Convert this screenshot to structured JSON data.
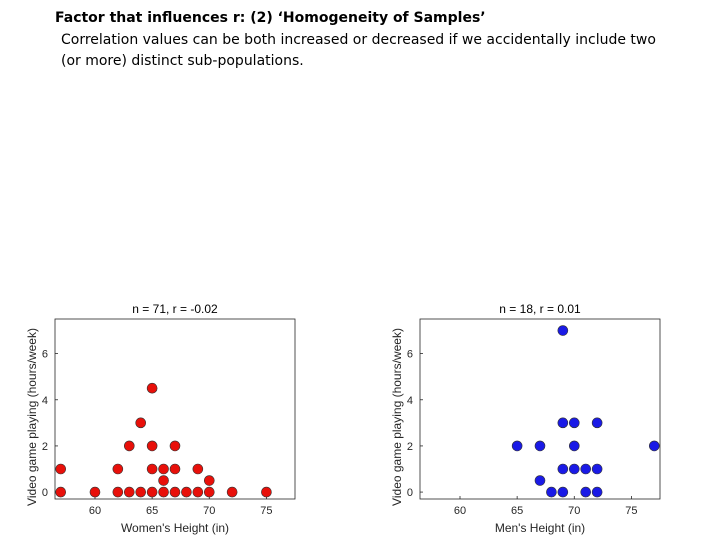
{
  "slide": {
    "title": "Factor that influences r: (2) ‘Homogeneity of Samples’",
    "body": "Correlation values can be both increased or decreased if we accidentally include two (or more) distinct sub-populations."
  },
  "chart_data": [
    {
      "type": "scatter",
      "title": "n = 71, r = -0.02",
      "xlabel": "Women's Height (in)",
      "ylabel": "Video game playing (hours/week)",
      "xlim": [
        56.5,
        77.5
      ],
      "ylim": [
        -0.3,
        7.5
      ],
      "xticks": [
        60,
        65,
        70,
        75
      ],
      "yticks": [
        0,
        2,
        4,
        6
      ],
      "color": "#e8100a",
      "grid": false,
      "points": [
        {
          "x": 57,
          "y": 0
        },
        {
          "x": 57,
          "y": 1
        },
        {
          "x": 60,
          "y": 0
        },
        {
          "x": 62,
          "y": 0
        },
        {
          "x": 62,
          "y": 1
        },
        {
          "x": 63,
          "y": 0
        },
        {
          "x": 63,
          "y": 2
        },
        {
          "x": 64,
          "y": 0
        },
        {
          "x": 64,
          "y": 3
        },
        {
          "x": 65,
          "y": 0
        },
        {
          "x": 65,
          "y": 1
        },
        {
          "x": 65,
          "y": 2
        },
        {
          "x": 65,
          "y": 4.5
        },
        {
          "x": 66,
          "y": 0
        },
        {
          "x": 66,
          "y": 0.5
        },
        {
          "x": 66,
          "y": 1
        },
        {
          "x": 67,
          "y": 0
        },
        {
          "x": 67,
          "y": 1
        },
        {
          "x": 67,
          "y": 2
        },
        {
          "x": 68,
          "y": 0
        },
        {
          "x": 69,
          "y": 0
        },
        {
          "x": 69,
          "y": 1
        },
        {
          "x": 70,
          "y": 0
        },
        {
          "x": 70,
          "y": 0.5
        },
        {
          "x": 72,
          "y": 0
        },
        {
          "x": 75,
          "y": 0
        }
      ]
    },
    {
      "type": "scatter",
      "title": "n = 18, r =  0.01",
      "xlabel": "Men's Height (in)",
      "ylabel": "Video game playing (hours/week)",
      "xlim": [
        56.5,
        77.5
      ],
      "ylim": [
        -0.3,
        7.5
      ],
      "xticks": [
        60,
        65,
        70,
        75
      ],
      "yticks": [
        0,
        2,
        4,
        6
      ],
      "color": "#1a1ae6",
      "grid": false,
      "points": [
        {
          "x": 65,
          "y": 2
        },
        {
          "x": 67,
          "y": 2
        },
        {
          "x": 67,
          "y": 0.5
        },
        {
          "x": 68,
          "y": 0
        },
        {
          "x": 69,
          "y": 0
        },
        {
          "x": 69,
          "y": 1
        },
        {
          "x": 69,
          "y": 3
        },
        {
          "x": 69,
          "y": 7
        },
        {
          "x": 70,
          "y": 1
        },
        {
          "x": 70,
          "y": 2
        },
        {
          "x": 70,
          "y": 3
        },
        {
          "x": 71,
          "y": 0
        },
        {
          "x": 71,
          "y": 1
        },
        {
          "x": 72,
          "y": 0
        },
        {
          "x": 72,
          "y": 1
        },
        {
          "x": 72,
          "y": 3
        },
        {
          "x": 77,
          "y": 2
        }
      ]
    }
  ]
}
